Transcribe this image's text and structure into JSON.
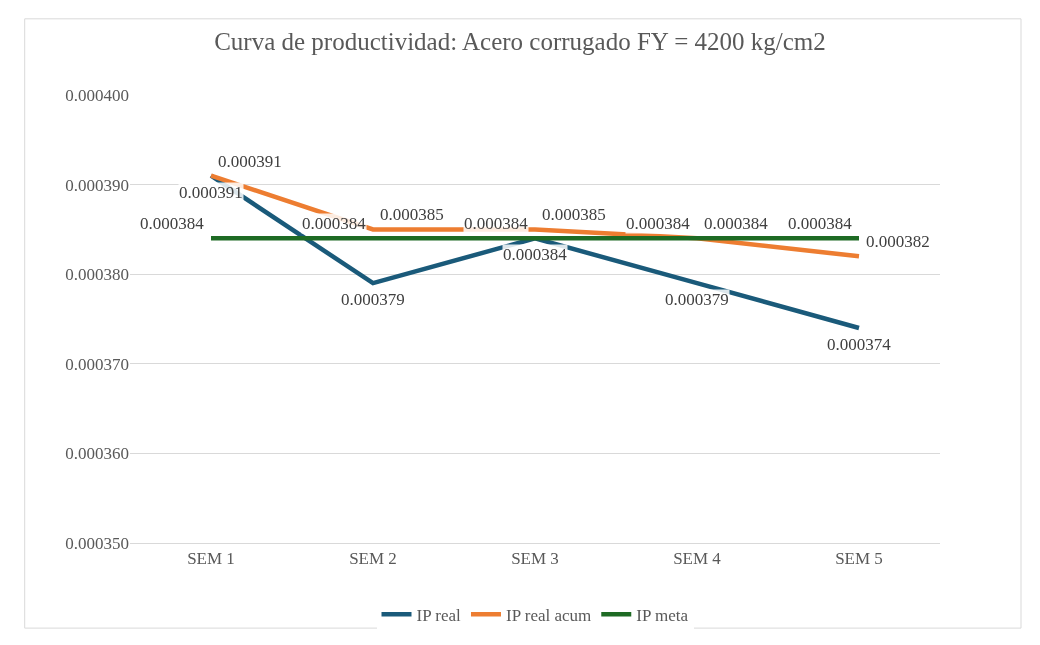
{
  "chart_data": {
    "type": "line",
    "title": "Curva de productividad: Acero corrugado FY = 4200 kg/cm2",
    "categories": [
      "SEM 1",
      "SEM 2",
      "SEM 3",
      "SEM 4",
      "SEM 5"
    ],
    "series": [
      {
        "name": "IP real",
        "color": "#1a5a7a",
        "values": [
          0.000391,
          0.000379,
          0.000384,
          0.000379,
          0.000374
        ]
      },
      {
        "name": "IP real acum",
        "color": "#ed7d31",
        "values": [
          0.000391,
          0.000385,
          0.000385,
          0.000384,
          0.000382
        ]
      },
      {
        "name": "IP meta",
        "color": "#1e6b24",
        "values": [
          0.000384,
          0.000384,
          0.000384,
          0.000384,
          0.000384
        ]
      }
    ],
    "ylim": [
      0.00035,
      0.0004
    ],
    "yticks": [
      {
        "value": 0.00035,
        "label": "0.000350"
      },
      {
        "value": 0.00036,
        "label": "0.000360"
      },
      {
        "value": 0.00037,
        "label": "0.000370"
      },
      {
        "value": 0.00038,
        "label": "0.000380"
      },
      {
        "value": 0.00039,
        "label": "0.000390"
      },
      {
        "value": 0.0004,
        "label": "0.000400"
      }
    ],
    "grid": "y",
    "legend": "bottom",
    "data_labels": true,
    "marker": "none",
    "line_style": "solid"
  }
}
